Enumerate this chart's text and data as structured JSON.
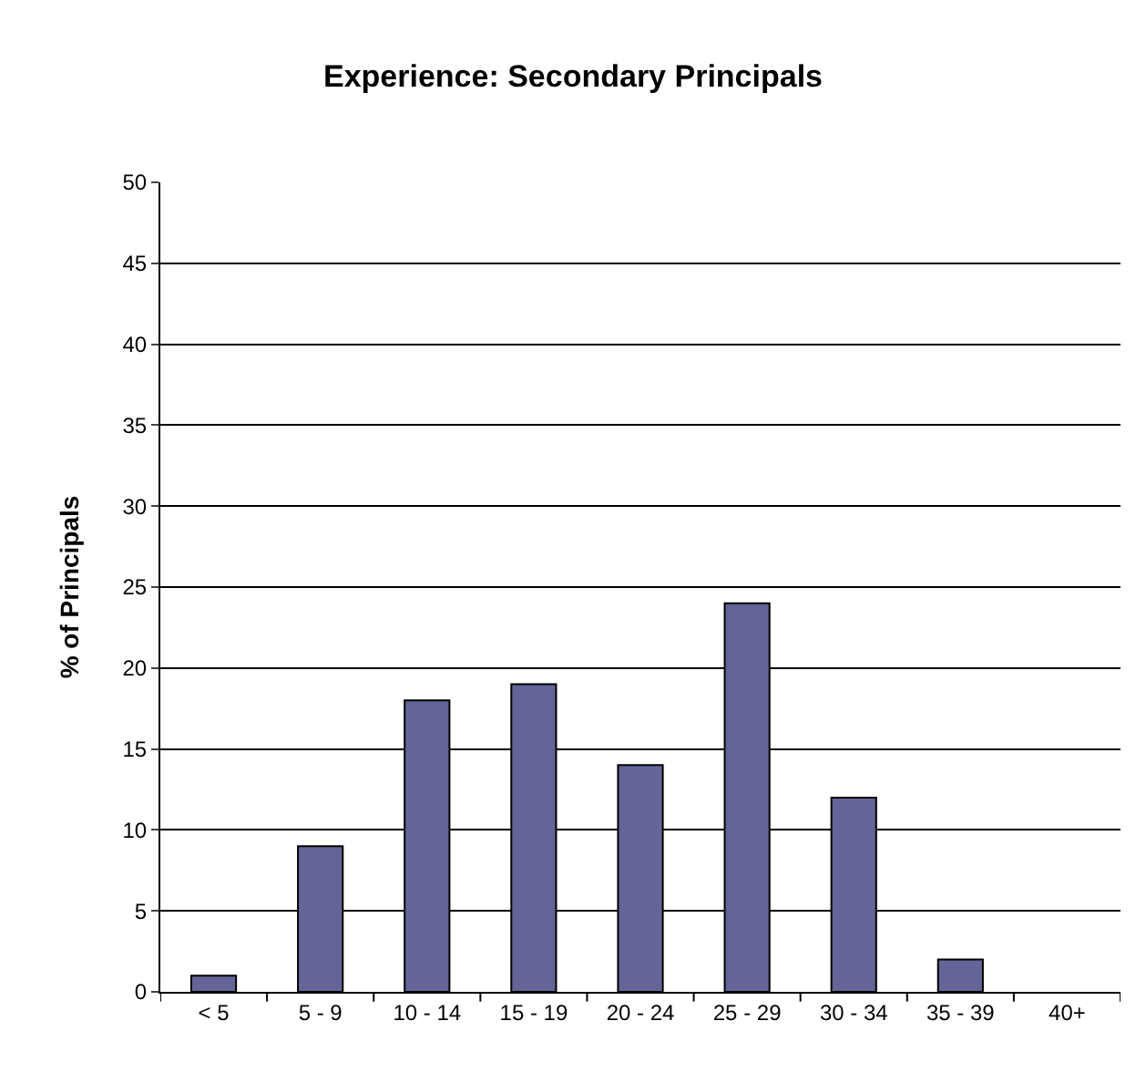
{
  "chart_data": {
    "type": "bar",
    "title": "Experience: Secondary Principals",
    "ylabel": "% of Principals",
    "categories": [
      "< 5",
      "5 - 9",
      "10 - 14",
      "15 - 19",
      "20 - 24",
      "25 - 29",
      "30 - 34",
      "35 - 39",
      "40+"
    ],
    "values": [
      1,
      9,
      18,
      19,
      14,
      24,
      12,
      2,
      0
    ],
    "color": "#646496",
    "ylim": [
      0,
      50
    ],
    "yticks": [
      0,
      5,
      10,
      15,
      20,
      25,
      30,
      35,
      40,
      45,
      50
    ],
    "grid": "y"
  }
}
